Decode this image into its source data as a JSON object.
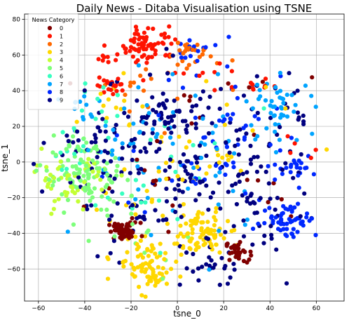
{
  "chart_data": {
    "type": "scatter",
    "title": "Daily News - Ditaba Visualisation using TSNE",
    "xlabel": "tsne_0",
    "ylabel": "tsne_1",
    "xlim": [
      -66,
      72
    ],
    "ylim": [
      -78,
      83
    ],
    "xticks": [
      -60,
      -40,
      -20,
      0,
      20,
      40,
      60
    ],
    "yticks": [
      80,
      60,
      40,
      20,
      0,
      -20,
      -40,
      -60
    ],
    "grid": true,
    "legend": {
      "title": "News Category",
      "placement": "top-left",
      "entries": [
        "0",
        "1",
        "2",
        "3",
        "4",
        "5",
        "6",
        "7",
        "8",
        "9"
      ],
      "colors": [
        "#800000",
        "#ff1300",
        "#ff6800",
        "#ffd700",
        "#c4ff33",
        "#7dff7a",
        "#37ffc0",
        "#00a4ff",
        "#0028ff",
        "#00007f"
      ]
    },
    "series": [
      {
        "name": "0",
        "color": "#800000",
        "clusters": [
          {
            "x": -23,
            "y": -39,
            "sx": 3.5,
            "sy": 2.5,
            "n": 55
          },
          {
            "x": 26,
            "y": -50,
            "sx": 2.5,
            "sy": 3,
            "n": 30
          },
          {
            "x": -15,
            "y": -20,
            "sx": 12,
            "sy": 10,
            "n": 10
          },
          {
            "x": 5,
            "y": 30,
            "sx": 20,
            "sy": 15,
            "n": 12
          },
          {
            "x": 40,
            "y": -15,
            "sx": 8,
            "sy": 10,
            "n": 6
          }
        ]
      },
      {
        "name": "1",
        "color": "#ff1300",
        "clusters": [
          {
            "x": -12,
            "y": 66,
            "sx": 6,
            "sy": 5,
            "n": 70
          },
          {
            "x": -28,
            "y": 44,
            "sx": 4,
            "sy": 3,
            "n": 20
          },
          {
            "x": -30,
            "y": 58,
            "sx": 2,
            "sy": 2,
            "n": 8
          },
          {
            "x": 36,
            "y": 43,
            "sx": 3,
            "sy": 2,
            "n": 8
          },
          {
            "x": 2,
            "y": 48,
            "sx": 12,
            "sy": 6,
            "n": 10
          },
          {
            "x": 50,
            "y": 10,
            "sx": 5,
            "sy": 4,
            "n": 5
          }
        ]
      },
      {
        "name": "2",
        "color": "#ff6800",
        "clusters": [
          {
            "x": 5,
            "y": 61,
            "sx": 4,
            "sy": 4,
            "n": 22
          },
          {
            "x": -20,
            "y": 45,
            "sx": 8,
            "sy": 5,
            "n": 10
          },
          {
            "x": 10,
            "y": 40,
            "sx": 15,
            "sy": 10,
            "n": 8
          }
        ]
      },
      {
        "name": "3",
        "color": "#ffd700",
        "clusters": [
          {
            "x": 10,
            "y": -40,
            "sx": 6,
            "sy": 6,
            "n": 90
          },
          {
            "x": -15,
            "y": -55,
            "sx": 6,
            "sy": 8,
            "n": 60
          },
          {
            "x": -10,
            "y": -65,
            "sx": 4,
            "sy": 3,
            "n": 25
          },
          {
            "x": 0,
            "y": 0,
            "sx": 25,
            "sy": 22,
            "n": 45
          },
          {
            "x": -30,
            "y": 30,
            "sx": 6,
            "sy": 6,
            "n": 10
          }
        ]
      },
      {
        "name": "4",
        "color": "#c4ff33",
        "clusters": [
          {
            "x": -45,
            "y": -8,
            "sx": 8,
            "sy": 7,
            "n": 40
          },
          {
            "x": -50,
            "y": -20,
            "sx": 4,
            "sy": 4,
            "n": 8
          }
        ]
      },
      {
        "name": "5",
        "color": "#7dff7a",
        "clusters": [
          {
            "x": -40,
            "y": -8,
            "sx": 9,
            "sy": 8,
            "n": 90
          },
          {
            "x": -30,
            "y": -30,
            "sx": 8,
            "sy": 8,
            "n": 12
          },
          {
            "x": -45,
            "y": 8,
            "sx": 6,
            "sy": 5,
            "n": 12
          },
          {
            "x": -10,
            "y": -50,
            "sx": 10,
            "sy": 8,
            "n": 8
          }
        ]
      },
      {
        "name": "6",
        "color": "#37ffc0",
        "clusters": [
          {
            "x": -38,
            "y": 28,
            "sx": 6,
            "sy": 8,
            "n": 14
          },
          {
            "x": -20,
            "y": -20,
            "sx": 12,
            "sy": 12,
            "n": 10
          },
          {
            "x": 10,
            "y": 0,
            "sx": 20,
            "sy": 20,
            "n": 10
          },
          {
            "x": -50,
            "y": 0,
            "sx": 5,
            "sy": 8,
            "n": 10
          }
        ]
      },
      {
        "name": "7",
        "color": "#00a4ff",
        "clusters": [
          {
            "x": 45,
            "y": 32,
            "sx": 7,
            "sy": 8,
            "n": 45
          },
          {
            "x": -25,
            "y": 10,
            "sx": 8,
            "sy": 10,
            "n": 20
          },
          {
            "x": 5,
            "y": 5,
            "sx": 22,
            "sy": 25,
            "n": 50
          },
          {
            "x": -40,
            "y": 30,
            "sx": 6,
            "sy": 6,
            "n": 12
          }
        ]
      },
      {
        "name": "8",
        "color": "#0028ff",
        "clusters": [
          {
            "x": 48,
            "y": -32,
            "sx": 6,
            "sy": 5,
            "n": 55
          },
          {
            "x": 50,
            "y": -2,
            "sx": 5,
            "sy": 3,
            "n": 22
          },
          {
            "x": 8,
            "y": 62,
            "sx": 4,
            "sy": 4,
            "n": 15
          },
          {
            "x": 15,
            "y": 10,
            "sx": 22,
            "sy": 22,
            "n": 40
          },
          {
            "x": 28,
            "y": 25,
            "sx": 12,
            "sy": 12,
            "n": 15
          }
        ]
      },
      {
        "name": "9",
        "color": "#00007f",
        "clusters": [
          {
            "x": -5,
            "y": 25,
            "sx": 6,
            "sy": 6,
            "n": 40
          },
          {
            "x": 0,
            "y": -5,
            "sx": 26,
            "sy": 26,
            "n": 190
          },
          {
            "x": 35,
            "y": -20,
            "sx": 10,
            "sy": 14,
            "n": 40
          },
          {
            "x": 15,
            "y": -60,
            "sx": 6,
            "sy": 6,
            "n": 20
          },
          {
            "x": -35,
            "y": 10,
            "sx": 8,
            "sy": 8,
            "n": 20
          },
          {
            "x": 50,
            "y": 25,
            "sx": 6,
            "sy": 6,
            "n": 12
          }
        ]
      }
    ]
  }
}
